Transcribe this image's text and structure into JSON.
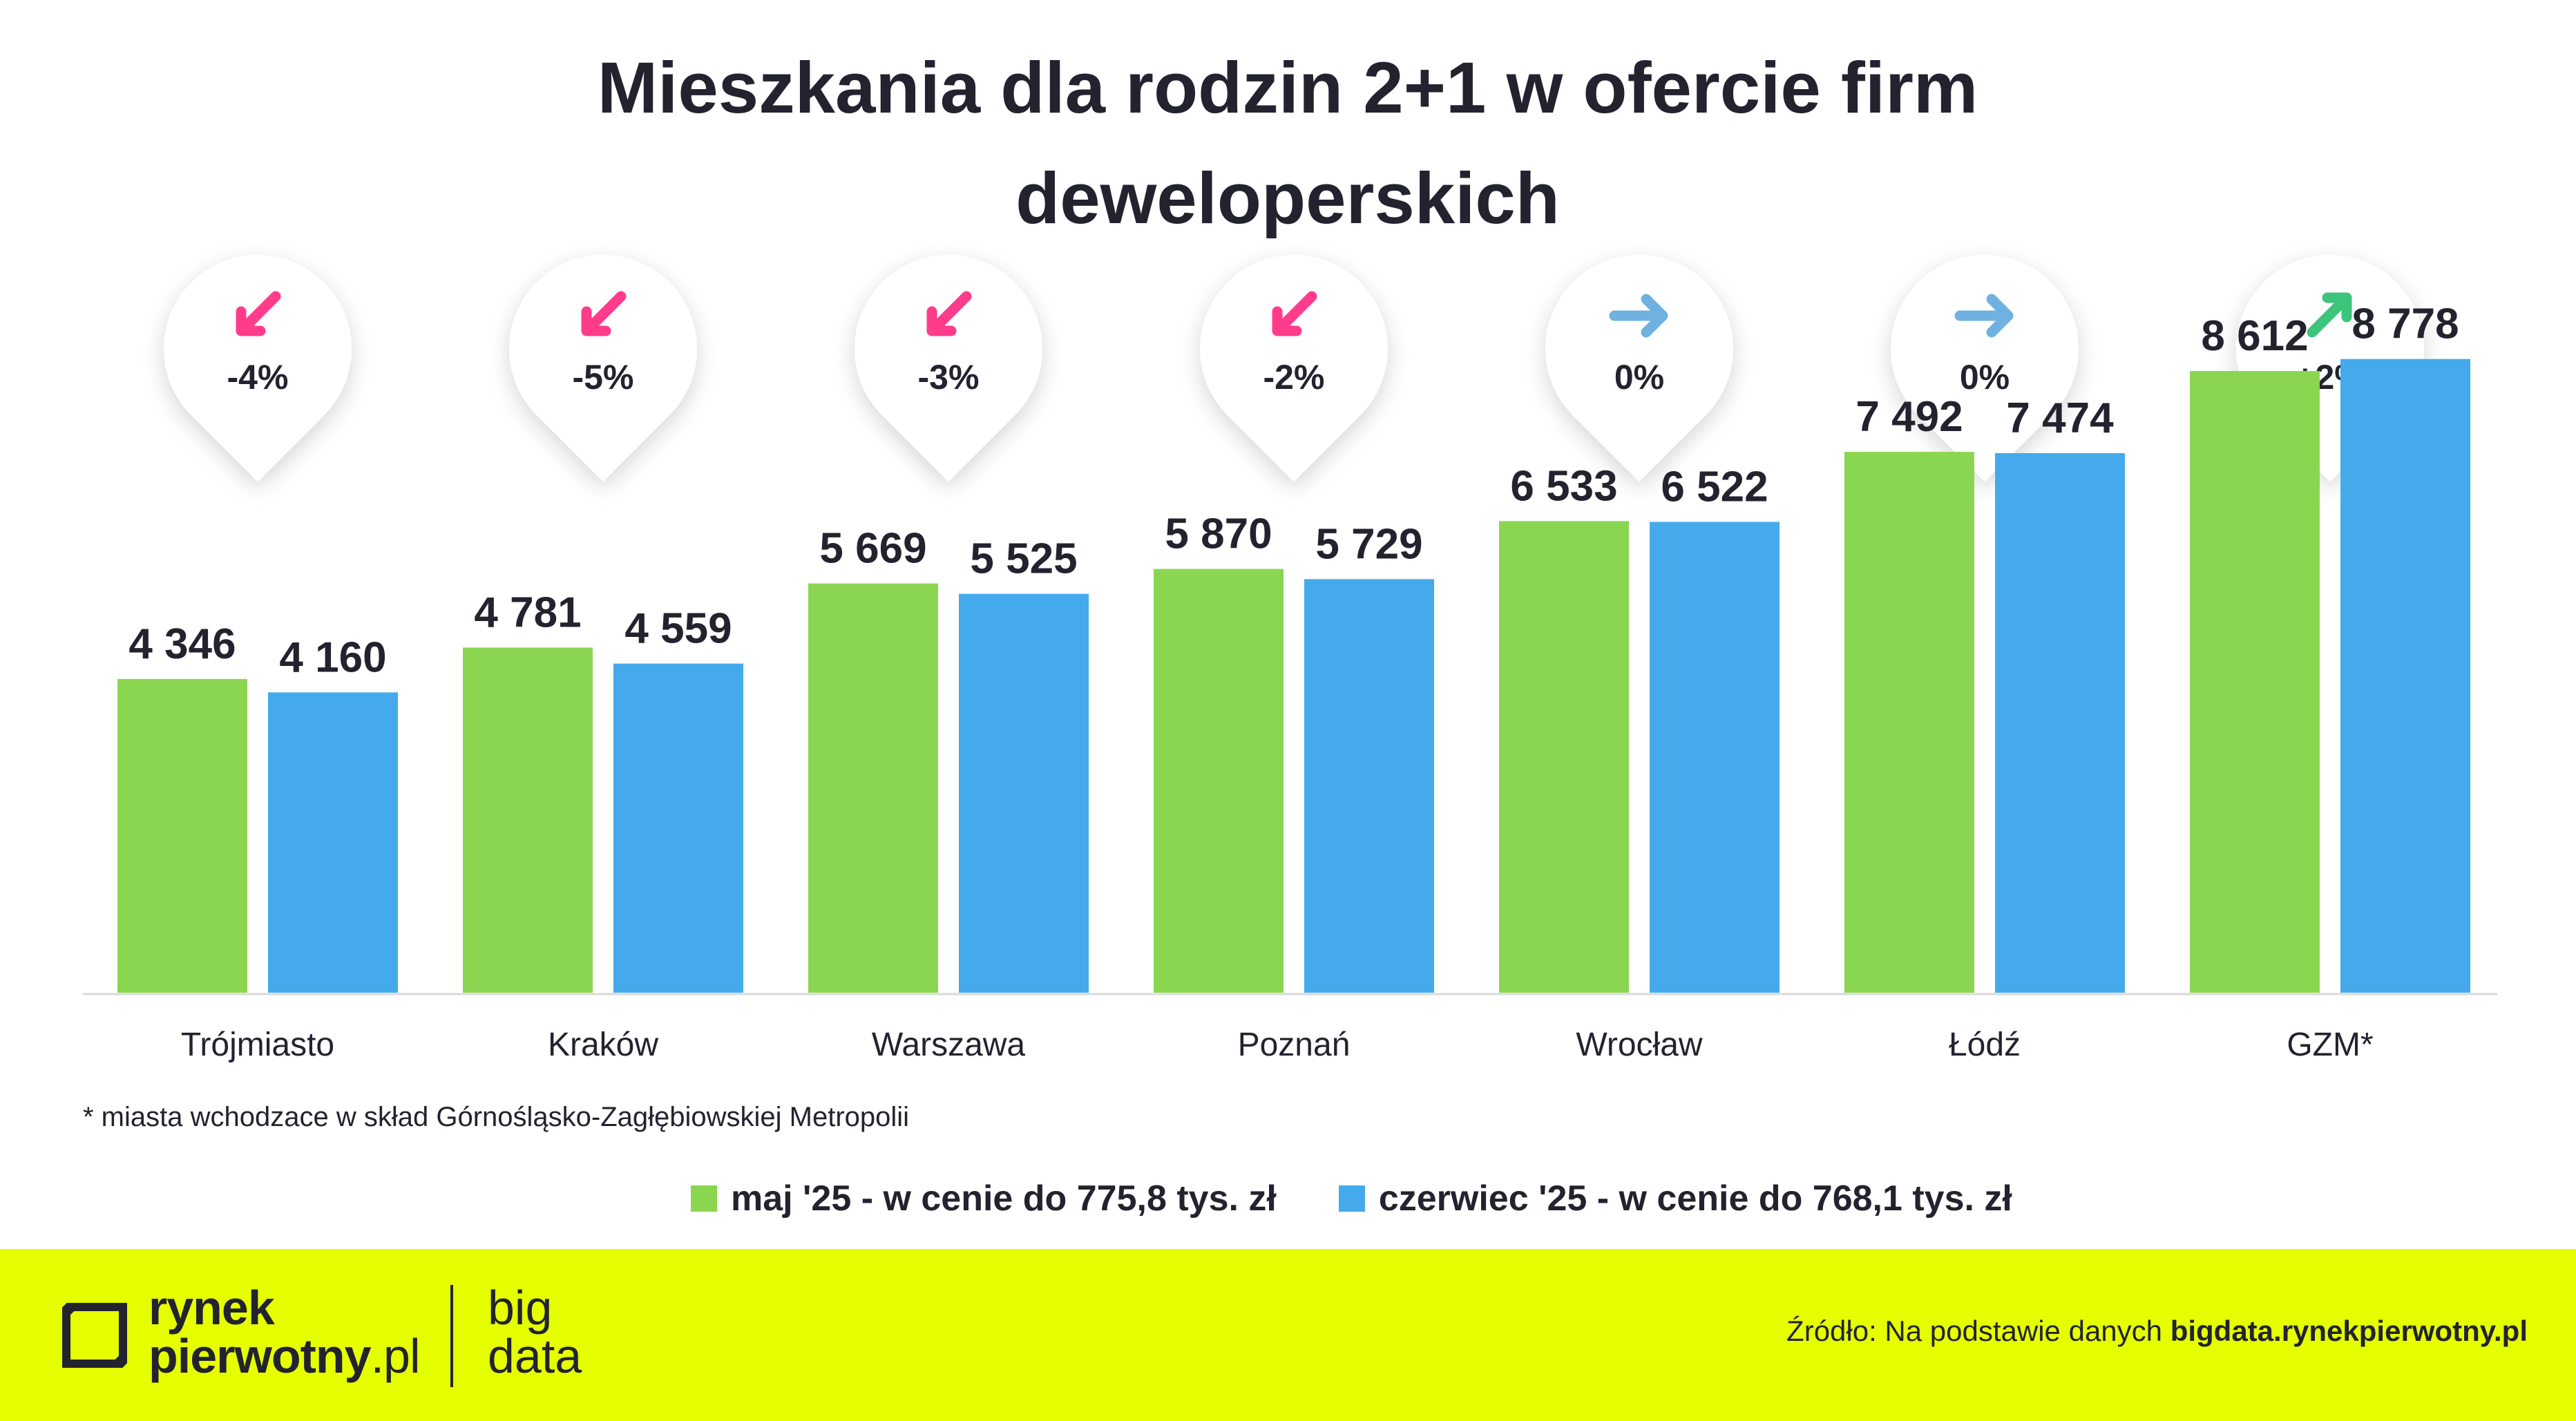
{
  "chart_data": {
    "type": "bar",
    "title": "Mieszkania dla rodzin 2+1 w ofercie firm deweloperskich",
    "categories": [
      "Trójmiasto",
      "Kraków",
      "Warszawa",
      "Poznań",
      "Wrocław",
      "Łódź",
      "GZM*"
    ],
    "series": [
      {
        "name": "maj '25 - w cenie do 775,8 tys. zł",
        "color": "#8bd650",
        "values": [
          4346,
          4781,
          5669,
          5870,
          6533,
          7492,
          8612
        ],
        "labels": [
          "4 346",
          "4 781",
          "5 669",
          "5 870",
          "6 533",
          "7 492",
          "8 612"
        ]
      },
      {
        "name": "czerwiec '25 - w cenie do 768,1 tys. zł",
        "color": "#45aaeb",
        "values": [
          4160,
          4559,
          5525,
          5729,
          6522,
          7474,
          8778
        ],
        "labels": [
          "4 160",
          "4 559",
          "5 525",
          "5 729",
          "6 522",
          "7 474",
          "8 778"
        ]
      }
    ],
    "changes": [
      {
        "label": "-4%",
        "direction": "down",
        "color": "#ff3c8c"
      },
      {
        "label": "-5%",
        "direction": "down",
        "color": "#ff3c8c"
      },
      {
        "label": "-3%",
        "direction": "down",
        "color": "#ff3c8c"
      },
      {
        "label": "-2%",
        "direction": "down",
        "color": "#ff3c8c"
      },
      {
        "label": "0%",
        "direction": "flat",
        "color": "#6fb1e0"
      },
      {
        "label": "0%",
        "direction": "flat",
        "color": "#6fb1e0"
      },
      {
        "label": "+2%",
        "direction": "up",
        "color": "#3cc47a"
      }
    ],
    "ylim": [
      0,
      10000
    ],
    "grid": false,
    "legend_position": "bottom"
  },
  "footnote": "* miasta wchodzace w skład Górnośląsko-Zagłębiowskiej Metropolii",
  "footer": {
    "logo_line1": "rynek",
    "logo_line2_bold": "pierwotny",
    "logo_line2_thin": ".pl",
    "logo_big_line1": "big",
    "logo_big_line2": "data",
    "source_prefix": "Źródło: Na podstawie danych ",
    "source_bold": "bigdata.rynekpierwotny.pl",
    "bg_color": "#e6ff00"
  }
}
